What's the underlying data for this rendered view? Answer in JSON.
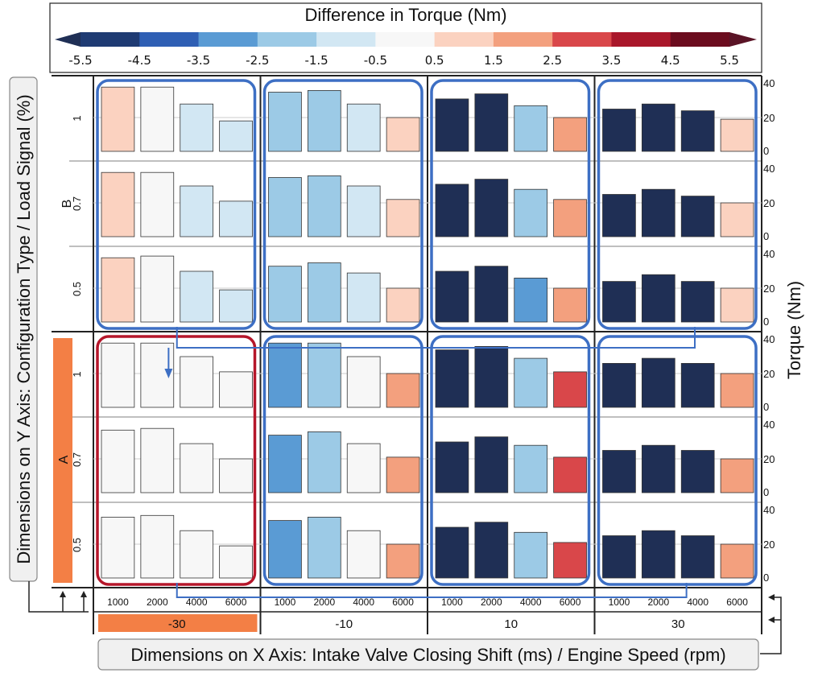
{
  "legend": {
    "title": "Difference in Torque (Nm)",
    "tick_labels": [
      "-5.5",
      "-4.5",
      "-3.5",
      "-2.5",
      "-1.5",
      "-0.5",
      "0.5",
      "1.5",
      "2.5",
      "3.5",
      "4.5",
      "5.5"
    ],
    "colors": [
      "#1f3b73",
      "#2f5fb4",
      "#5a9bd4",
      "#9ccae6",
      "#d2e7f3",
      "#f7f7f7",
      "#fbd2c0",
      "#f3a07e",
      "#d9474a",
      "#a9172a",
      "#6b0c1e"
    ],
    "under_color": "#1f2f55",
    "over_color": "#5a1426"
  },
  "x_axis": {
    "title": "Dimensions on X Axis: Intake Valve Closing Shift (ms) / Engine Speed (rpm)",
    "outer_labels": [
      "-30",
      "-10",
      "10",
      "30"
    ],
    "inner_labels": [
      "1000",
      "2000",
      "4000",
      "6000"
    ],
    "highlight_color": "#f37f45"
  },
  "y_axis": {
    "title": "Dimensions on Y Axis: Configuration Type / Load Signal (%)",
    "outer_labels": [
      "B",
      "A"
    ],
    "inner_labels": [
      "1",
      "0.7",
      "0.5"
    ],
    "highlight_color": "#f37f45"
  },
  "right_axis": {
    "title": "Torque (Nm)",
    "ticks": [
      "40",
      "20",
      "0"
    ]
  },
  "chart_data": {
    "type": "bar",
    "description_fields": [
      "rows by configuration/load",
      "columns by intake valve shift",
      "bars by engine speed"
    ],
    "y_range": [
      0,
      40
    ],
    "rows": [
      {
        "config": "B",
        "load": "1",
        "panels": [
          {
            "shift": "-30",
            "values": [
              38,
              38,
              28,
              18
            ],
            "diffs": [
              1,
              0,
              -1,
              -1
            ]
          },
          {
            "shift": "-10",
            "values": [
              35,
              36,
              28,
              20
            ],
            "diffs": [
              -2,
              -2,
              -1,
              1
            ]
          },
          {
            "shift": "10",
            "values": [
              31,
              34,
              27,
              20
            ],
            "diffs": [
              -6,
              -6,
              -2,
              2
            ]
          },
          {
            "shift": "30",
            "values": [
              25,
              28,
              24,
              19
            ],
            "diffs": [
              -6,
              -6,
              -6,
              1
            ]
          }
        ]
      },
      {
        "config": "B",
        "load": "0.7",
        "panels": [
          {
            "shift": "-30",
            "values": [
              38,
              38,
              30,
              21
            ],
            "diffs": [
              1,
              0,
              -1,
              -1
            ]
          },
          {
            "shift": "-10",
            "values": [
              35,
              36,
              30,
              22
            ],
            "diffs": [
              -2,
              -2,
              -1,
              1
            ]
          },
          {
            "shift": "10",
            "values": [
              31,
              34,
              28,
              22
            ],
            "diffs": [
              -6,
              -6,
              -2,
              2
            ]
          },
          {
            "shift": "30",
            "values": [
              25,
              28,
              24,
              20
            ],
            "diffs": [
              -6,
              -6,
              -6,
              1
            ]
          }
        ]
      },
      {
        "config": "B",
        "load": "0.5",
        "panels": [
          {
            "shift": "-30",
            "values": [
              38,
              39,
              30,
              19
            ],
            "diffs": [
              1,
              0,
              -1,
              -1
            ]
          },
          {
            "shift": "-10",
            "values": [
              33,
              35,
              29,
              20
            ],
            "diffs": [
              -2,
              -2,
              -1,
              1
            ]
          },
          {
            "shift": "10",
            "values": [
              30,
              33,
              26,
              20
            ],
            "diffs": [
              -6,
              -6,
              -3,
              2
            ]
          },
          {
            "shift": "30",
            "values": [
              24,
              28,
              24,
              20
            ],
            "diffs": [
              -6,
              -6,
              -6,
              1
            ]
          }
        ]
      },
      {
        "config": "A",
        "load": "1",
        "panels": [
          {
            "shift": "-30",
            "values": [
              38,
              38,
              30,
              21
            ],
            "diffs": [
              0,
              0,
              0,
              0
            ]
          },
          {
            "shift": "-10",
            "values": [
              38,
              38,
              30,
              20
            ],
            "diffs": [
              -3,
              -2,
              0,
              2
            ]
          },
          {
            "shift": "10",
            "values": [
              34,
              36,
              29,
              21
            ],
            "diffs": [
              -6,
              -6,
              -2,
              3
            ]
          },
          {
            "shift": "30",
            "values": [
              26,
              29,
              26,
              20
            ],
            "diffs": [
              -6,
              -6,
              -6,
              2
            ]
          }
        ]
      },
      {
        "config": "A",
        "load": "0.7",
        "panels": [
          {
            "shift": "-30",
            "values": [
              37,
              38,
              29,
              20
            ],
            "diffs": [
              0,
              0,
              0,
              0
            ]
          },
          {
            "shift": "-10",
            "values": [
              34,
              36,
              29,
              21
            ],
            "diffs": [
              -3,
              -2,
              0,
              2
            ]
          },
          {
            "shift": "10",
            "values": [
              30,
              33,
              28,
              21
            ],
            "diffs": [
              -6,
              -6,
              -2,
              3
            ]
          },
          {
            "shift": "30",
            "values": [
              25,
              28,
              25,
              20
            ],
            "diffs": [
              -6,
              -6,
              -6,
              2
            ]
          }
        ]
      },
      {
        "config": "A",
        "load": "0.5",
        "panels": [
          {
            "shift": "-30",
            "values": [
              36,
              37,
              28,
              19
            ],
            "diffs": [
              0,
              0,
              0,
              0
            ]
          },
          {
            "shift": "-10",
            "values": [
              34,
              36,
              28,
              20
            ],
            "diffs": [
              -3,
              -2,
              0,
              2
            ]
          },
          {
            "shift": "10",
            "values": [
              30,
              33,
              27,
              21
            ],
            "diffs": [
              -6,
              -6,
              -2,
              3
            ]
          },
          {
            "shift": "30",
            "values": [
              25,
              28,
              25,
              20
            ],
            "diffs": [
              -6,
              -6,
              -6,
              2
            ]
          }
        ]
      }
    ]
  }
}
